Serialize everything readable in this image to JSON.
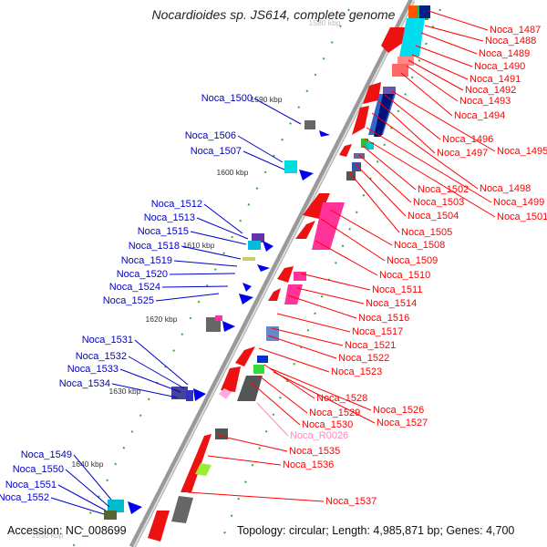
{
  "title": "Nocardioides sp. JS614, complete genome",
  "accession": "Accession: NC_008699",
  "summary": "Topology: circular; Length: 4,985,871 bp; Genes: 4,700",
  "colors": {
    "right_label": "#ff0000",
    "left_label": "#0000cc",
    "rna_label": "#ff88bb",
    "backbone": "#888888"
  },
  "ticks": [
    {
      "label": "1580 kbp"
    },
    {
      "label": "1590 kbp"
    },
    {
      "label": "1600 kbp"
    },
    {
      "label": "1610 kbp"
    },
    {
      "label": "1620 kbp"
    },
    {
      "label": "1630 kbp"
    },
    {
      "label": "1640 kbp"
    },
    {
      "label": "1650 kbp"
    }
  ],
  "left_genes": [
    {
      "label": "Noca_1500"
    },
    {
      "label": "Noca_1506"
    },
    {
      "label": "Noca_1507"
    },
    {
      "label": "Noca_1512"
    },
    {
      "label": "Noca_1513"
    },
    {
      "label": "Noca_1515"
    },
    {
      "label": "Noca_1518"
    },
    {
      "label": "Noca_1519"
    },
    {
      "label": "Noca_1520"
    },
    {
      "label": "Noca_1524"
    },
    {
      "label": "Noca_1525"
    },
    {
      "label": "Noca_1531"
    },
    {
      "label": "Noca_1532"
    },
    {
      "label": "Noca_1533"
    },
    {
      "label": "Noca_1534"
    },
    {
      "label": "Noca_1549"
    },
    {
      "label": "Noca_1550"
    },
    {
      "label": "Noca_1551"
    },
    {
      "label": "Noca_1552"
    }
  ],
  "right_genes": [
    {
      "label": "Noca_1487"
    },
    {
      "label": "Noca_1488"
    },
    {
      "label": "Noca_1489"
    },
    {
      "label": "Noca_1490"
    },
    {
      "label": "Noca_1491"
    },
    {
      "label": "Noca_1492"
    },
    {
      "label": "Noca_1493"
    },
    {
      "label": "Noca_1494"
    },
    {
      "label": "Noca_1495"
    },
    {
      "label": "Noca_1496"
    },
    {
      "label": "Noca_1497"
    },
    {
      "label": "Noca_1498"
    },
    {
      "label": "Noca_1499"
    },
    {
      "label": "Noca_1501"
    },
    {
      "label": "Noca_1502"
    },
    {
      "label": "Noca_1503"
    },
    {
      "label": "Noca_1504"
    },
    {
      "label": "Noca_1505"
    },
    {
      "label": "Noca_1508"
    },
    {
      "label": "Noca_1509"
    },
    {
      "label": "Noca_1510"
    },
    {
      "label": "Noca_1511"
    },
    {
      "label": "Noca_1514"
    },
    {
      "label": "Noca_1516"
    },
    {
      "label": "Noca_1517"
    },
    {
      "label": "Noca_1521"
    },
    {
      "label": "Noca_1522"
    },
    {
      "label": "Noca_1523"
    },
    {
      "label": "Noca_1528"
    },
    {
      "label": "Noca_1526"
    },
    {
      "label": "Noca_1529"
    },
    {
      "label": "Noca_1527"
    },
    {
      "label": "Noca_1530"
    },
    {
      "label": "Noca_R0026",
      "rna": true
    },
    {
      "label": "Noca_1535"
    },
    {
      "label": "Noca_1536"
    },
    {
      "label": "Noca_1537"
    }
  ]
}
